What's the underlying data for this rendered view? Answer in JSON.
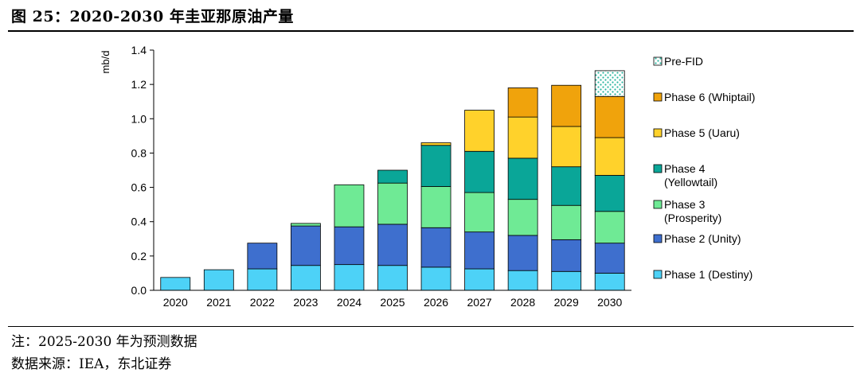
{
  "header": {
    "title": "图 25：2020-2030 年圭亚那原油产量"
  },
  "footer": {
    "note": "注：2025-2030 年为预测数据",
    "source": "数据来源：IEA，东北证券"
  },
  "chart_data": {
    "type": "bar",
    "stacked": true,
    "title": "",
    "xlabel": "",
    "ylabel": "mb/d",
    "ylim": [
      0,
      1.4
    ],
    "yticks": [
      "0.0",
      "0.2",
      "0.4",
      "0.6",
      "0.8",
      "1.0",
      "1.2",
      "1.4"
    ],
    "categories": [
      "2020",
      "2021",
      "2022",
      "2023",
      "2024",
      "2025",
      "2026",
      "2027",
      "2028",
      "2029",
      "2030"
    ],
    "legend_position": "right",
    "series": [
      {
        "name": "Phase 1 (Destiny)",
        "color": "#4dd2f7",
        "values": [
          0.075,
          0.12,
          0.125,
          0.145,
          0.15,
          0.145,
          0.135,
          0.125,
          0.115,
          0.11,
          0.1
        ]
      },
      {
        "name": "Phase 2 (Unity)",
        "color": "#3e6fce",
        "values": [
          0,
          0,
          0.15,
          0.23,
          0.22,
          0.24,
          0.23,
          0.215,
          0.205,
          0.185,
          0.175
        ]
      },
      {
        "name": "Phase 3 (Prosperity)",
        "color": "#6fea95",
        "values": [
          0,
          0,
          0,
          0.015,
          0.245,
          0.24,
          0.24,
          0.23,
          0.21,
          0.2,
          0.185
        ]
      },
      {
        "name": "Phase 4 (Yellowtail)",
        "color": "#0aa698",
        "values": [
          0,
          0,
          0,
          0,
          0,
          0.075,
          0.24,
          0.24,
          0.24,
          0.225,
          0.21
        ]
      },
      {
        "name": "Phase 5 (Uaru)",
        "color": "#ffd22b",
        "values": [
          0,
          0,
          0,
          0,
          0,
          0,
          0.015,
          0.24,
          0.24,
          0.235,
          0.22
        ]
      },
      {
        "name": "Phase 6 (Whiptail)",
        "color": "#f0a30c",
        "values": [
          0,
          0,
          0,
          0,
          0,
          0,
          0,
          0,
          0.17,
          0.24,
          0.24
        ]
      },
      {
        "name": "Pre-FID",
        "color": "#2bb5a0",
        "pattern": "dots",
        "values": [
          0,
          0,
          0,
          0,
          0,
          0,
          0,
          0,
          0,
          0,
          0.15
        ]
      }
    ]
  }
}
